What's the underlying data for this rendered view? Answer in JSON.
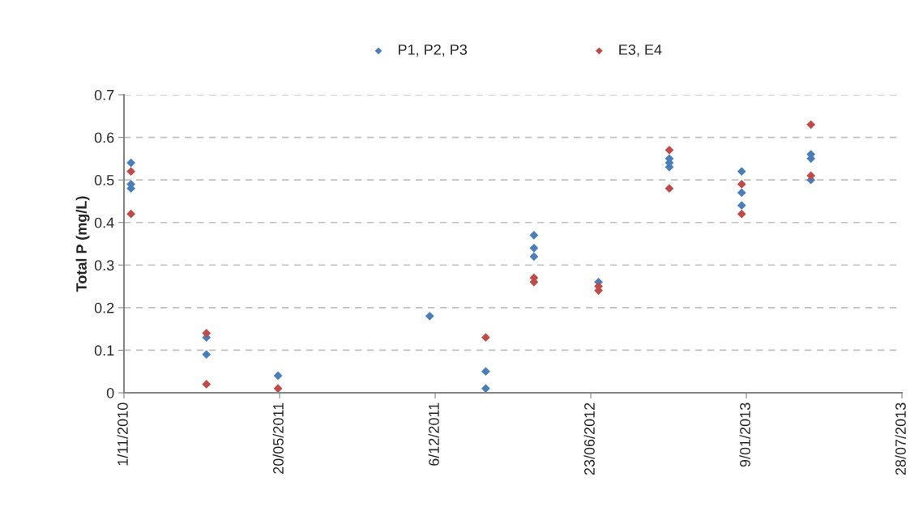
{
  "chart_data": {
    "type": "scatter",
    "ylabel": "Total P (mg/L)",
    "marker": "diamond",
    "grid": "y",
    "legend": "top",
    "xlim": [
      "2010-11-01",
      "2013-07-28"
    ],
    "xticks": [
      {
        "value": "2010-11-01",
        "label": "1/11/2010"
      },
      {
        "value": "2011-05-20",
        "label": "20/05/2011"
      },
      {
        "value": "2011-12-06",
        "label": "6/12/2011"
      },
      {
        "value": "2012-06-23",
        "label": "23/06/2012"
      },
      {
        "value": "2013-01-09",
        "label": "9/01/2013"
      },
      {
        "value": "2013-07-28",
        "label": "28/07/2013"
      }
    ],
    "ylim": [
      0,
      0.7
    ],
    "yticks": [
      0,
      0.1,
      0.2,
      0.3,
      0.4,
      0.5,
      0.6,
      0.7
    ],
    "series": [
      {
        "name": "P1, P2, P3",
        "color": "#4a7ebb",
        "x": [
          "2010-11-10",
          "2010-11-10",
          "2010-11-10",
          "2011-02-15",
          "2011-02-15",
          "2011-05-18",
          "2011-11-29",
          "2012-02-09",
          "2012-02-09",
          "2012-04-11",
          "2012-04-11",
          "2012-04-11",
          "2012-07-03",
          "2012-10-02",
          "2012-10-02",
          "2012-10-02",
          "2013-01-03",
          "2013-01-03",
          "2013-01-03",
          "2013-04-02",
          "2013-04-02",
          "2013-04-02"
        ],
        "values": [
          0.54,
          0.49,
          0.48,
          0.13,
          0.09,
          0.04,
          0.18,
          0.05,
          0.01,
          0.37,
          0.34,
          0.32,
          0.26,
          0.55,
          0.54,
          0.53,
          0.52,
          0.47,
          0.44,
          0.56,
          0.55,
          0.5
        ]
      },
      {
        "name": "E3, E4",
        "color": "#be4b48",
        "x": [
          "2010-11-10",
          "2010-11-10",
          "2011-02-15",
          "2011-02-15",
          "2011-05-18",
          "2012-02-09",
          "2012-04-11",
          "2012-04-11",
          "2012-07-03",
          "2012-07-03",
          "2012-10-02",
          "2012-10-02",
          "2013-01-03",
          "2013-01-03",
          "2013-04-02",
          "2013-04-02"
        ],
        "values": [
          0.52,
          0.42,
          0.14,
          0.02,
          0.01,
          0.13,
          0.27,
          0.26,
          0.25,
          0.24,
          0.57,
          0.48,
          0.49,
          0.42,
          0.63,
          0.51
        ]
      }
    ]
  }
}
